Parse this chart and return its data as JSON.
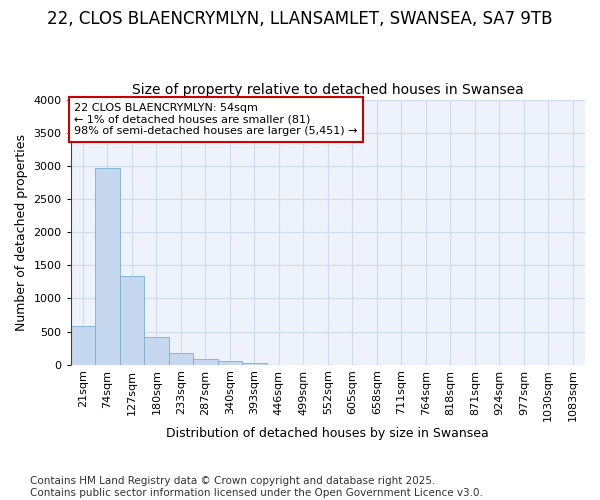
{
  "title": "22, CLOS BLAENCRYMLYN, LLANSAMLET, SWANSEA, SA7 9TB",
  "subtitle": "Size of property relative to detached houses in Swansea",
  "xlabel": "Distribution of detached houses by size in Swansea",
  "ylabel": "Number of detached properties",
  "bin_labels": [
    "21sqm",
    "74sqm",
    "127sqm",
    "180sqm",
    "233sqm",
    "287sqm",
    "340sqm",
    "393sqm",
    "446sqm",
    "499sqm",
    "552sqm",
    "605sqm",
    "658sqm",
    "711sqm",
    "764sqm",
    "818sqm",
    "871sqm",
    "924sqm",
    "977sqm",
    "1030sqm",
    "1083sqm"
  ],
  "bar_values": [
    590,
    2960,
    1340,
    420,
    175,
    90,
    50,
    30,
    0,
    0,
    0,
    0,
    0,
    0,
    0,
    0,
    0,
    0,
    0,
    0,
    0
  ],
  "bar_color": "#c5d8f0",
  "bar_edge_color": "#7bafd4",
  "vline_color": "#cc0000",
  "annotation_text": "22 CLOS BLAENCRYMLYN: 54sqm\n← 1% of detached houses are smaller (81)\n98% of semi-detached houses are larger (5,451) →",
  "annotation_box_color": "#cc0000",
  "ylim": [
    0,
    4000
  ],
  "footnote": "Contains HM Land Registry data © Crown copyright and database right 2025.\nContains public sector information licensed under the Open Government Licence v3.0.",
  "bg_color": "#edf2fb",
  "grid_color": "#d0daf0",
  "title_fontsize": 12,
  "subtitle_fontsize": 10,
  "axis_label_fontsize": 9,
  "tick_fontsize": 8,
  "footnote_fontsize": 7.5
}
